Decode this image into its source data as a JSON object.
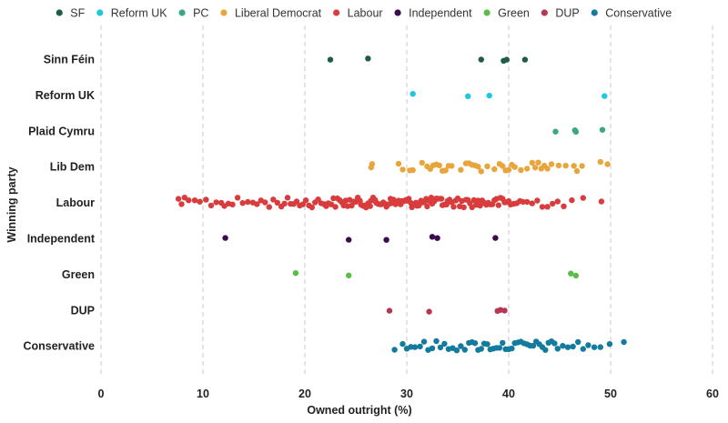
{
  "chart_data": {
    "type": "scatter",
    "title": "",
    "xlabel": "Owned outright (%)",
    "ylabel": "Winning party",
    "xlim": [
      0,
      60
    ],
    "xticks": [
      "0",
      "10",
      "20",
      "30",
      "40",
      "50",
      "60"
    ],
    "grid": "vertical dashed",
    "legend_position": "top",
    "legend": [
      {
        "name": "SF",
        "color": "#1f5c45"
      },
      {
        "name": "Reform UK",
        "color": "#1ec8e0"
      },
      {
        "name": "PC",
        "color": "#3aa886"
      },
      {
        "name": "Liberal Democrat",
        "color": "#e8a53c"
      },
      {
        "name": "Labour",
        "color": "#d83c3c"
      },
      {
        "name": "Independent",
        "color": "#3b0a4f"
      },
      {
        "name": "Green",
        "color": "#5cbd4a"
      },
      {
        "name": "DUP",
        "color": "#b8364f"
      },
      {
        "name": "Conservative",
        "color": "#137b9e"
      }
    ],
    "categories": [
      "Sinn Féin",
      "Reform UK",
      "Plaid Cymru",
      "Lib Dem",
      "Labour",
      "Independent",
      "Green",
      "DUP",
      "Conservative"
    ],
    "series": [
      {
        "category": "Sinn Féin",
        "color": "#1f5c45",
        "x": [
          22.5,
          26.2,
          37.3,
          39.5,
          39.8,
          41.6
        ]
      },
      {
        "category": "Reform UK",
        "color": "#1ec8e0",
        "x": [
          30.6,
          36.0,
          38.1,
          49.4
        ]
      },
      {
        "category": "Plaid Cymru",
        "color": "#3aa886",
        "x": [
          44.6,
          46.5,
          46.6,
          49.2
        ]
      },
      {
        "category": "Lib Dem",
        "color": "#e8a53c",
        "x": [
          26.5,
          26.6,
          29.2,
          29.6,
          30.3,
          30.6,
          31.5,
          32.0,
          32.3,
          32.6,
          32.9,
          33.2,
          33.5,
          33.8,
          34.1,
          34.4,
          35.3,
          35.8,
          36.1,
          36.4,
          36.7,
          37.0,
          37.3,
          37.9,
          38.6,
          39.1,
          39.4,
          39.7,
          40.0,
          40.3,
          40.6,
          41.2,
          41.8,
          42.3,
          42.6,
          42.9,
          43.2,
          43.5,
          43.8,
          44.2,
          44.9,
          45.6,
          46.4,
          46.7,
          47.2,
          49.0,
          49.7
        ]
      },
      {
        "category": "Labour",
        "color": "#d83c3c",
        "x": [
          7.6,
          7.9,
          8.2,
          8.6,
          9.2,
          9.7,
          10.3,
          10.8,
          11.3,
          11.8,
          12.1,
          12.5,
          12.9,
          13.4,
          13.9,
          14.4,
          14.9,
          15.3,
          15.7,
          16.1,
          16.5,
          16.9,
          17.3,
          17.7,
          18.0,
          18.3,
          18.6,
          18.9,
          19.2,
          19.5,
          19.8,
          20.1,
          20.4,
          20.7,
          21.0,
          21.3,
          21.6,
          21.9,
          22.1,
          22.3,
          22.6,
          22.8,
          23.0,
          23.2,
          23.4,
          23.6,
          23.8,
          24.0,
          24.2,
          24.4,
          24.6,
          24.8,
          25.0,
          25.2,
          25.4,
          25.5,
          25.7,
          25.9,
          26.0,
          26.2,
          26.4,
          26.5,
          26.7,
          26.9,
          27.0,
          27.2,
          27.4,
          27.5,
          27.7,
          27.9,
          28.0,
          28.2,
          28.4,
          28.5,
          28.7,
          28.9,
          29.0,
          29.2,
          29.4,
          29.5,
          29.7,
          29.9,
          30.0,
          30.2,
          30.4,
          30.5,
          30.7,
          30.9,
          31.0,
          31.2,
          31.4,
          31.5,
          31.7,
          31.9,
          32.0,
          32.2,
          32.4,
          32.5,
          32.7,
          32.9,
          33.0,
          33.2,
          33.4,
          33.5,
          33.7,
          33.9,
          34.0,
          34.2,
          34.4,
          34.6,
          34.8,
          35.0,
          35.2,
          35.4,
          35.6,
          35.8,
          36.0,
          36.2,
          36.4,
          36.6,
          36.8,
          37.0,
          37.2,
          37.4,
          37.6,
          37.8,
          38.0,
          38.2,
          38.4,
          38.6,
          38.8,
          39.0,
          39.2,
          39.4,
          39.6,
          39.8,
          40.0,
          40.2,
          40.5,
          40.8,
          41.1,
          41.4,
          41.8,
          42.3,
          42.8,
          43.3,
          43.8,
          44.3,
          44.8,
          45.4,
          46.2,
          47.3,
          49.1
        ]
      },
      {
        "category": "Independent",
        "color": "#3b0a4f",
        "x": [
          12.2,
          24.3,
          28.0,
          32.5,
          33.0,
          38.7
        ]
      },
      {
        "category": "Green",
        "color": "#5cbd4a",
        "x": [
          19.1,
          24.3,
          46.1,
          46.6
        ]
      },
      {
        "category": "DUP",
        "color": "#b8364f",
        "x": [
          28.3,
          32.2,
          38.9,
          39.2,
          39.6
        ]
      },
      {
        "category": "Conservative",
        "color": "#137b9e",
        "x": [
          28.8,
          29.6,
          30.0,
          30.4,
          30.8,
          31.3,
          31.7,
          32.1,
          32.5,
          32.9,
          33.3,
          33.7,
          34.1,
          34.5,
          34.9,
          35.3,
          35.7,
          36.1,
          36.4,
          36.7,
          37.0,
          37.3,
          37.6,
          37.9,
          38.2,
          38.5,
          38.8,
          39.1,
          39.4,
          39.7,
          40.0,
          40.3,
          40.6,
          40.9,
          41.2,
          41.5,
          41.8,
          42.1,
          42.4,
          42.7,
          43.0,
          43.3,
          43.6,
          43.9,
          44.2,
          44.5,
          44.8,
          45.3,
          45.8,
          46.3,
          46.8,
          47.3,
          47.8,
          48.4,
          49.0,
          49.9,
          51.3
        ]
      }
    ]
  }
}
